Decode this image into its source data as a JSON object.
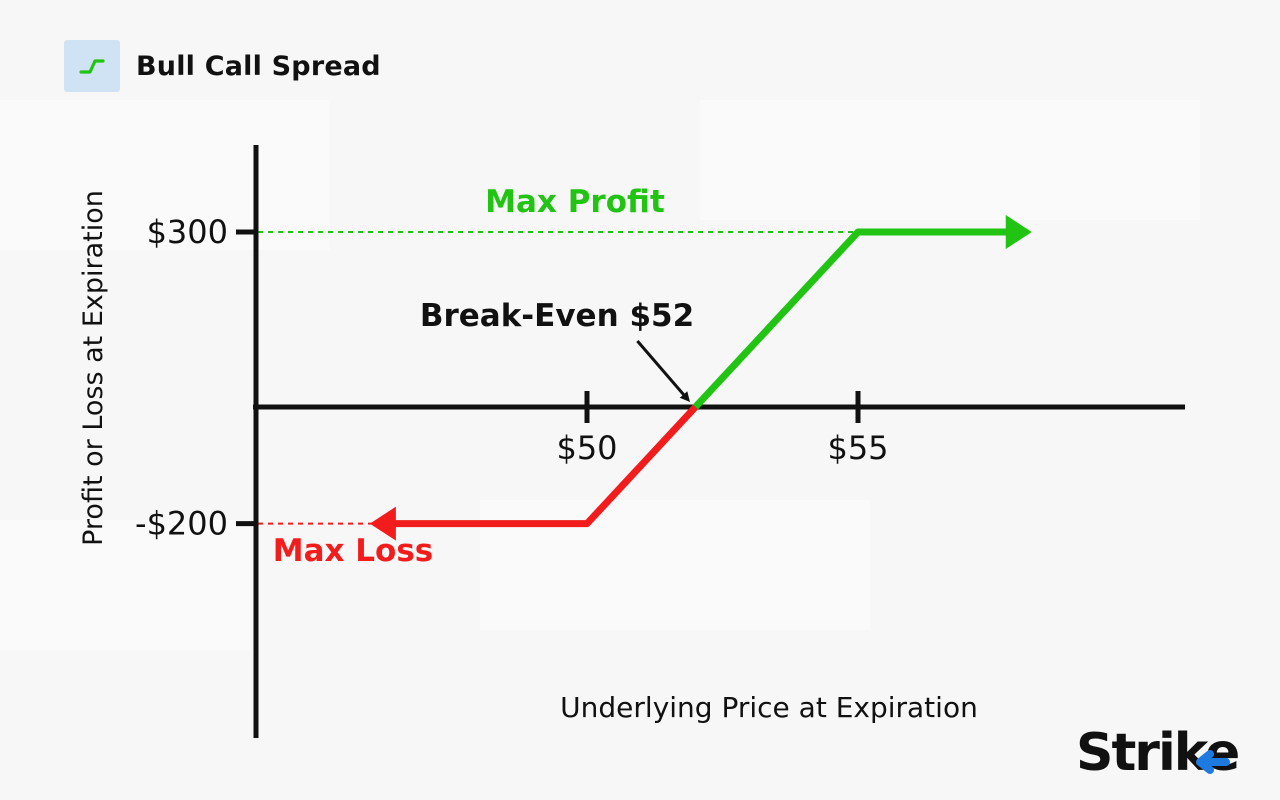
{
  "header": {
    "title": "Bull Call Spread",
    "icon": "trend-step-icon"
  },
  "logo": {
    "text": "Strike"
  },
  "colors": {
    "profit": "#22c414",
    "loss": "#f21c1c",
    "axis": "#111111",
    "logo_accent": "#1f7ae0"
  },
  "chart_data": {
    "type": "line",
    "title": "Bull Call Spread",
    "xlabel": "Underlying Price at Expiration",
    "ylabel": "Profit or Loss at Expiration",
    "x_ticks": [
      {
        "value": 50,
        "label": "$50"
      },
      {
        "value": 55,
        "label": "$55"
      }
    ],
    "y_ticks": [
      {
        "value": 300,
        "label": "$300"
      },
      {
        "value": -200,
        "label": "-$200"
      }
    ],
    "series": [
      {
        "segment": "loss",
        "x": [
          46.4,
          50,
          52
        ],
        "y": [
          -200,
          -200,
          0
        ]
      },
      {
        "segment": "profit",
        "x": [
          52,
          55,
          57.8
        ],
        "y": [
          0,
          300,
          300
        ]
      }
    ],
    "annotations": {
      "max_profit": "Max Profit",
      "max_loss": "Max Loss",
      "break_even": "Break-Even $52"
    },
    "break_even_value": 52,
    "max_profit_value": 300,
    "max_loss_value": -200,
    "grid": false
  }
}
